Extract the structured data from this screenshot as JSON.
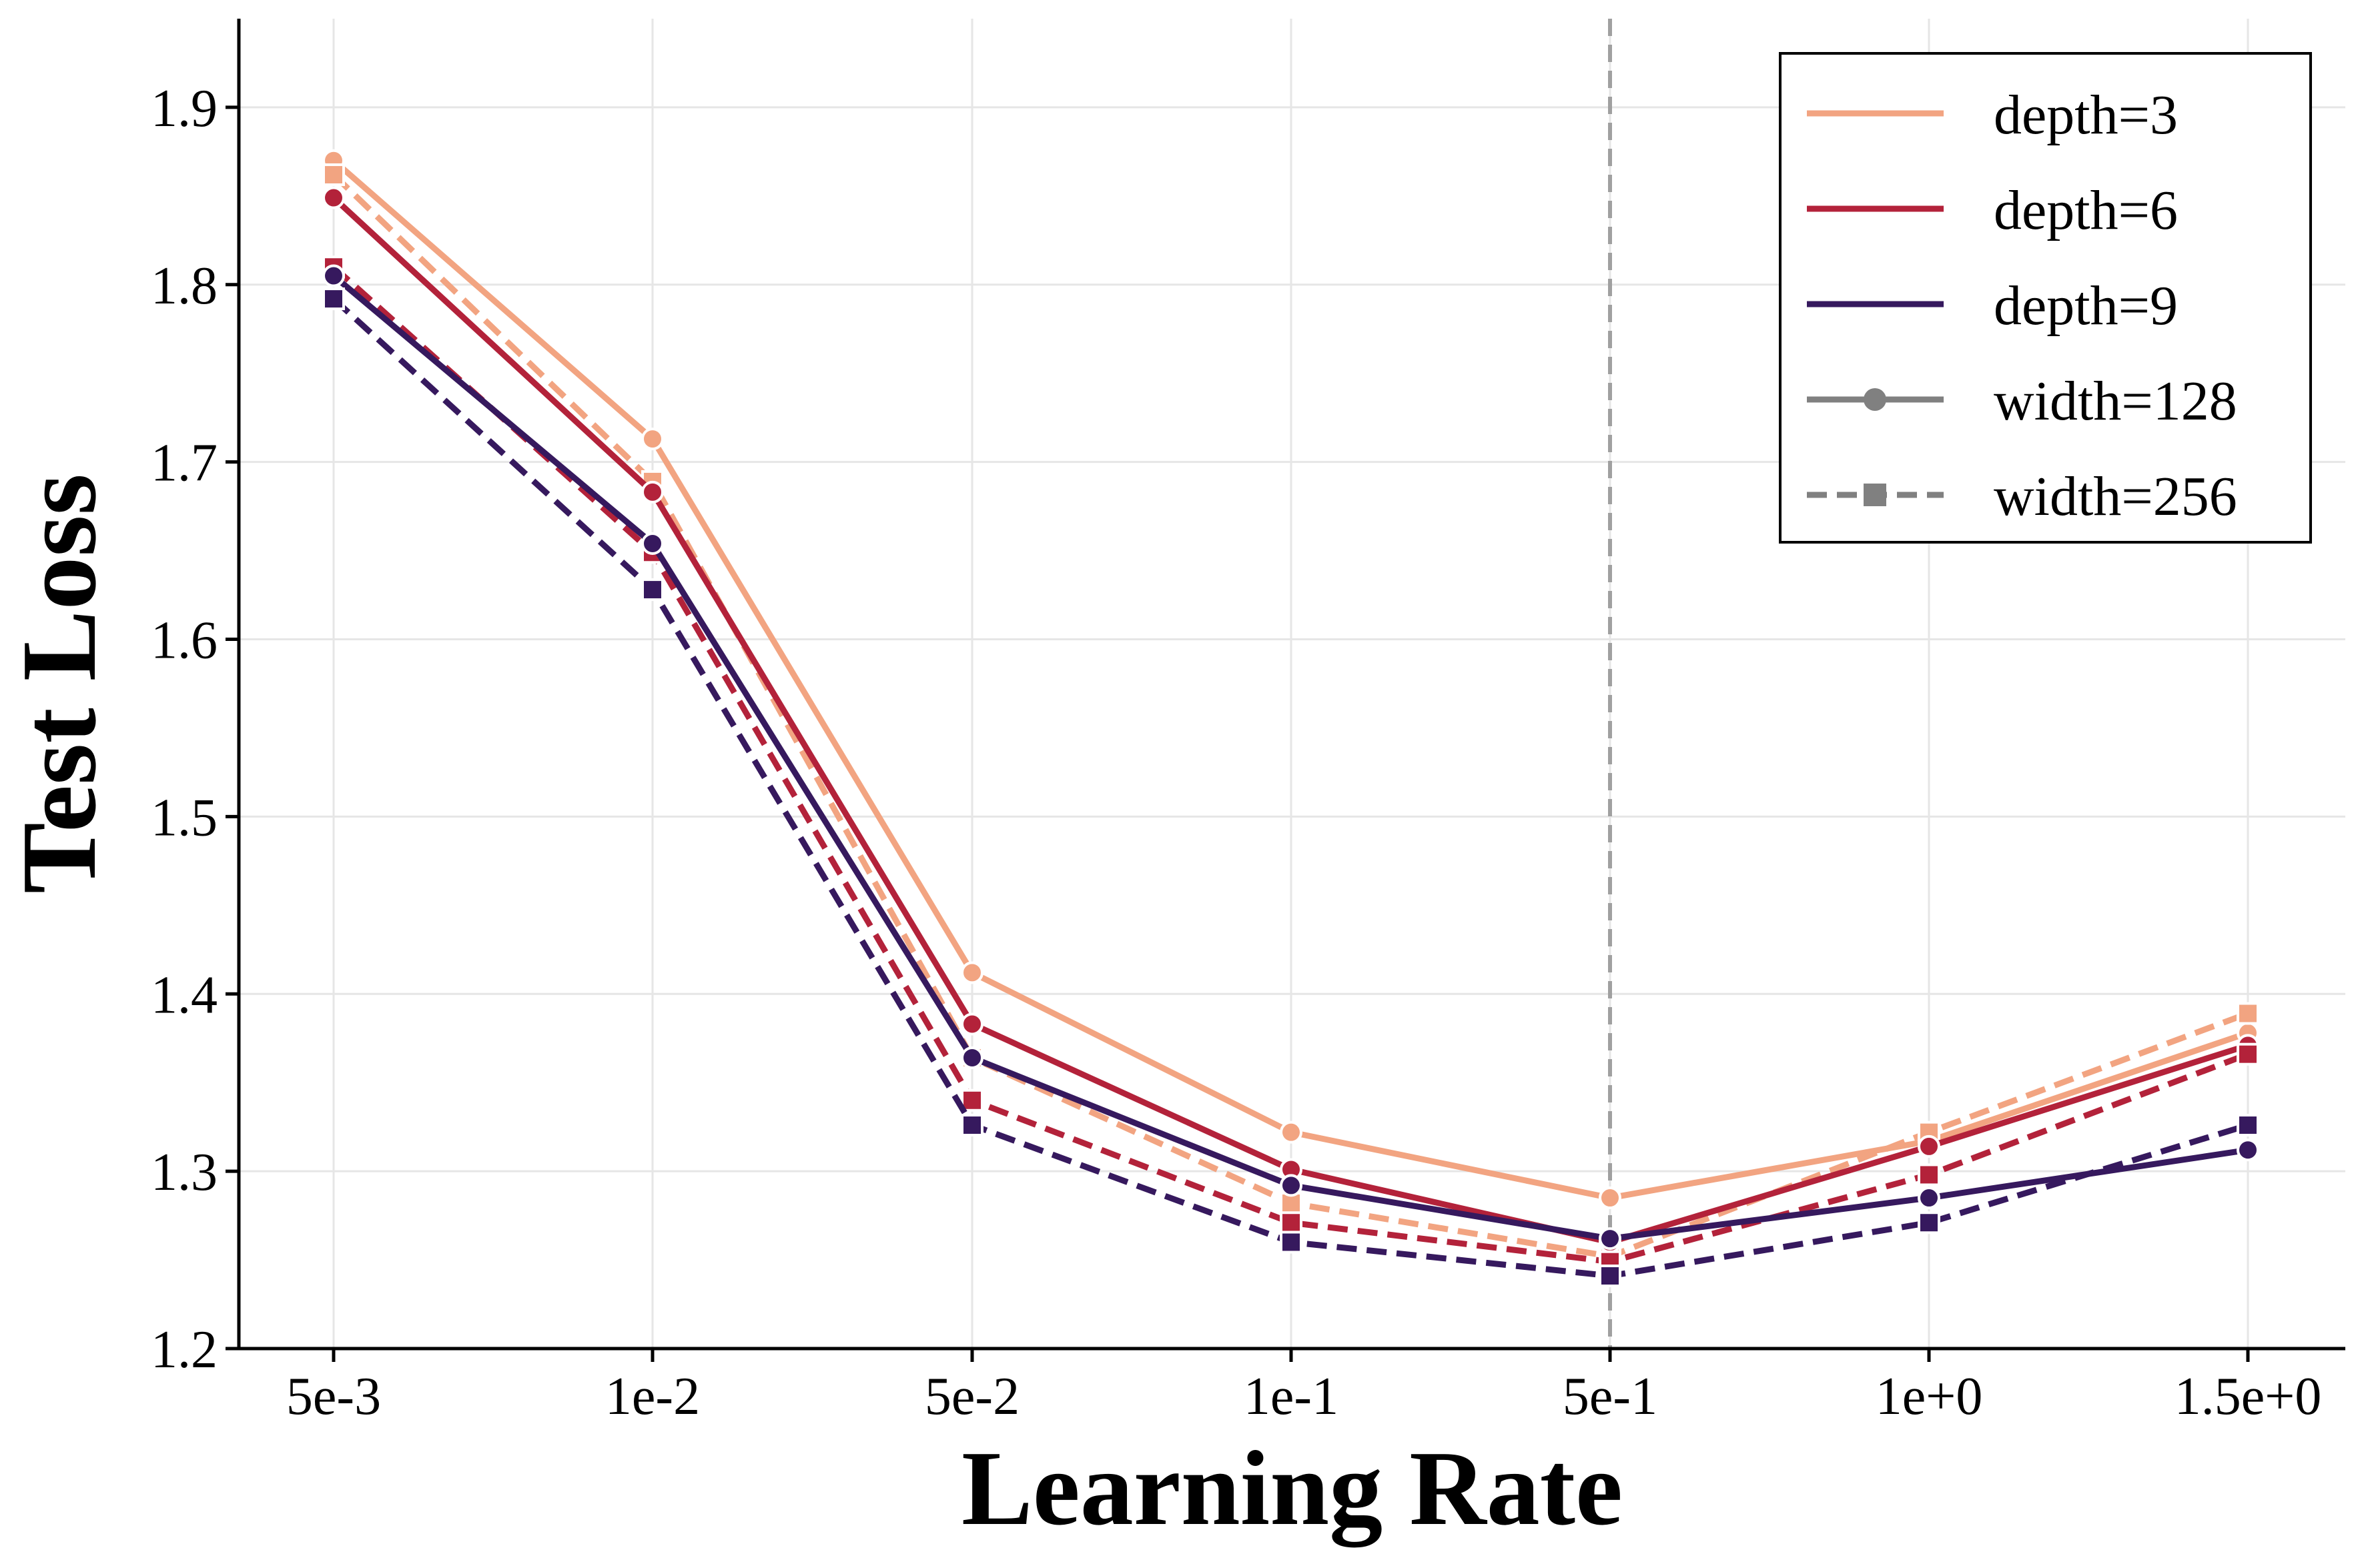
{
  "chart_data": {
    "type": "line",
    "title": "",
    "xlabel": "Learning Rate",
    "ylabel": "Test Loss",
    "categories": [
      "5e-3",
      "1e-2",
      "5e-2",
      "1e-1",
      "5e-1",
      "1e+0",
      "1.5e+0"
    ],
    "yticks": [
      "1.2",
      "1.3",
      "1.4",
      "1.5",
      "1.6",
      "1.7",
      "1.8",
      "1.9"
    ],
    "ylim": [
      1.2,
      1.95
    ],
    "grid": true,
    "reference_line_category": "5e-1",
    "legend_position": "top-right",
    "series": [
      {
        "name": "depth=3, width=128",
        "depth": "depth=3",
        "width": "width=128",
        "color": "#f2a481",
        "style": "solid",
        "marker": "circle",
        "values": [
          1.87,
          1.713,
          1.412,
          1.322,
          1.285,
          1.317,
          1.378
        ]
      },
      {
        "name": "depth=3, width=256",
        "depth": "depth=3",
        "width": "width=256",
        "color": "#f2a481",
        "style": "dashed",
        "marker": "square",
        "values": [
          1.862,
          1.689,
          1.364,
          1.282,
          1.252,
          1.322,
          1.389
        ]
      },
      {
        "name": "depth=6, width=128",
        "depth": "depth=6",
        "width": "width=128",
        "color": "#b3223a",
        "style": "solid",
        "marker": "circle",
        "values": [
          1.849,
          1.683,
          1.383,
          1.301,
          1.26,
          1.314,
          1.371
        ]
      },
      {
        "name": "depth=6, width=256",
        "depth": "depth=6",
        "width": "width=256",
        "color": "#b3223a",
        "style": "dashed",
        "marker": "square",
        "values": [
          1.81,
          1.649,
          1.34,
          1.271,
          1.249,
          1.298,
          1.366
        ]
      },
      {
        "name": "depth=9, width=128",
        "depth": "depth=9",
        "width": "width=128",
        "color": "#36195e",
        "style": "solid",
        "marker": "circle",
        "values": [
          1.805,
          1.654,
          1.364,
          1.292,
          1.262,
          1.285,
          1.312
        ]
      },
      {
        "name": "depth=9, width=256",
        "depth": "depth=9",
        "width": "width=256",
        "color": "#36195e",
        "style": "dashed",
        "marker": "square",
        "values": [
          1.792,
          1.628,
          1.326,
          1.26,
          1.241,
          1.271,
          1.326
        ]
      }
    ],
    "legend": [
      {
        "label": "depth=3",
        "color": "#f2a481",
        "style": "solid",
        "marker": "none"
      },
      {
        "label": "depth=6",
        "color": "#b3223a",
        "style": "solid",
        "marker": "none"
      },
      {
        "label": "depth=9",
        "color": "#36195e",
        "style": "solid",
        "marker": "none"
      },
      {
        "label": "width=128",
        "color": "#808080",
        "style": "solid",
        "marker": "circle"
      },
      {
        "label": "width=256",
        "color": "#808080",
        "style": "dashed",
        "marker": "square"
      }
    ]
  }
}
